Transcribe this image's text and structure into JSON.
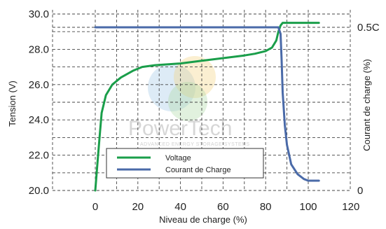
{
  "chart_data": {
    "type": "line",
    "title": "",
    "xlabel": "Niveau de charge (%)",
    "ylabel_left": "Tension (V)",
    "ylabel_right": "Courant de charge (%)",
    "xlim": [
      0,
      120
    ],
    "ylim_left": [
      20,
      30
    ],
    "x_ticks": [
      "0",
      "20",
      "40",
      "60",
      "80",
      "100",
      "120"
    ],
    "y_ticks_left": [
      "20.0",
      "22.0",
      "24.0",
      "26.0",
      "28.0",
      "30.0"
    ],
    "y_ticks_right": [
      "0",
      "0.5C"
    ],
    "grid": true,
    "grid_style": "dashed",
    "legend_position": "bottom-left",
    "series": [
      {
        "name": "Voltage",
        "axis": "left",
        "color": "#1a9e4a",
        "x": [
          0,
          1,
          2,
          3,
          5,
          8,
          12,
          18,
          22,
          28,
          40,
          50,
          60,
          70,
          75,
          80,
          83,
          85,
          86,
          87,
          88,
          95,
          105
        ],
        "y": [
          20.0,
          21.5,
          23.0,
          24.4,
          25.4,
          26.0,
          26.4,
          26.8,
          27.0,
          27.1,
          27.2,
          27.35,
          27.5,
          27.65,
          27.75,
          27.9,
          28.1,
          28.5,
          29.0,
          29.35,
          29.5,
          29.5,
          29.5
        ]
      },
      {
        "name": "Courant de Charge",
        "axis": "right",
        "color": "#4a6aa8",
        "x": [
          0,
          20,
          40,
          60,
          80,
          86,
          87,
          87.5,
          88,
          89,
          90,
          92,
          95,
          98,
          100,
          105
        ],
        "y": [
          0.5,
          0.5,
          0.5,
          0.5,
          0.5,
          0.5,
          0.48,
          0.4,
          0.3,
          0.2,
          0.14,
          0.08,
          0.05,
          0.035,
          0.03,
          0.03
        ]
      }
    ]
  },
  "watermark": {
    "name": "PowerTech",
    "tagline": "ADVANCED ENERGY STORAGE SYSTEMS"
  }
}
